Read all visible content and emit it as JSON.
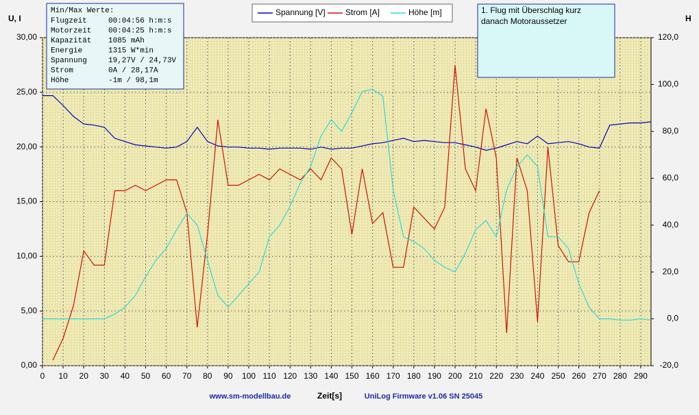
{
  "chart_data": {
    "type": "line",
    "y_label": "U, I",
    "y2_label": "H",
    "x_label": "Zeit[s]",
    "footer_left": "www.sm-modellbau.de",
    "footer_right": "UniLog Firmware v1.06 SN 25045",
    "annotation": [
      "1. Flug mit Überschlag kurz",
      "danach Motoraussetzer"
    ],
    "info_box": {
      "title": "Min/Max Werte:",
      "rows": [
        [
          "Flugzeit",
          "00:04:56 h:m:s"
        ],
        [
          "Motorzeit",
          "00:04:25 h:m:s"
        ],
        [
          "Kapazität",
          "1085 mAh"
        ],
        [
          "Energie",
          "1315 W*min"
        ],
        [
          "Spannung",
          "19,27V / 24,73V"
        ],
        [
          "Strom",
          "0A / 28,17A"
        ],
        [
          "Höhe",
          "-1m / 98,1m"
        ]
      ]
    },
    "grid": true,
    "xlim": [
      0,
      295
    ],
    "xticks": [
      0,
      10,
      20,
      30,
      40,
      50,
      60,
      70,
      80,
      90,
      100,
      110,
      120,
      130,
      140,
      150,
      160,
      170,
      180,
      190,
      200,
      210,
      220,
      230,
      240,
      250,
      260,
      270,
      280,
      290
    ],
    "ylim": [
      0,
      30
    ],
    "yticks": [
      {
        "value": 0,
        "label": "0,00"
      },
      {
        "value": 5,
        "label": "5,00"
      },
      {
        "value": 10,
        "label": "10,00"
      },
      {
        "value": 15,
        "label": "15,00"
      },
      {
        "value": 20,
        "label": "20,00"
      },
      {
        "value": 25,
        "label": "25,00"
      },
      {
        "value": 30,
        "label": "30,00"
      }
    ],
    "y2lim": [
      -20,
      120
    ],
    "y2ticks": [
      {
        "value": -20,
        "label": "-20,0"
      },
      {
        "value": 0,
        "label": "0,0"
      },
      {
        "value": 20,
        "label": "20,0"
      },
      {
        "value": 40,
        "label": "40,0"
      },
      {
        "value": 60,
        "label": "60,0"
      },
      {
        "value": 80,
        "label": "80,0"
      },
      {
        "value": 100,
        "label": "100,0"
      },
      {
        "value": 120,
        "label": "120,0"
      }
    ],
    "x": [
      0,
      5,
      10,
      15,
      20,
      25,
      30,
      35,
      40,
      45,
      50,
      55,
      60,
      65,
      70,
      75,
      80,
      85,
      90,
      95,
      100,
      105,
      110,
      115,
      120,
      125,
      130,
      135,
      140,
      145,
      150,
      155,
      160,
      165,
      170,
      175,
      180,
      185,
      190,
      195,
      200,
      205,
      210,
      215,
      220,
      225,
      230,
      235,
      240,
      245,
      250,
      255,
      260,
      265,
      270,
      275,
      280,
      285,
      290,
      295
    ],
    "series": [
      {
        "name": "Spannung [V]",
        "color": "#0000c0",
        "values": [
          24.7,
          24.7,
          23.8,
          22.8,
          22.1,
          22.0,
          21.8,
          20.8,
          20.5,
          20.2,
          20.1,
          20.0,
          19.9,
          20.0,
          20.5,
          21.8,
          20.5,
          20.1,
          20.0,
          20.0,
          19.9,
          19.9,
          19.8,
          19.9,
          19.9,
          19.9,
          19.8,
          20.0,
          19.8,
          19.9,
          19.9,
          20.1,
          20.3,
          20.4,
          20.6,
          20.8,
          20.5,
          20.6,
          20.5,
          20.4,
          20.4,
          20.2,
          20.0,
          19.7,
          19.9,
          20.2,
          20.5,
          20.3,
          21.0,
          20.3,
          20.4,
          20.5,
          20.3,
          20.0,
          19.9,
          22.0,
          22.1,
          22.2,
          22.2,
          22.3
        ]
      },
      {
        "name": "Strom [A]",
        "color": "#d01000",
        "values": [
          null,
          0.5,
          2.5,
          5.5,
          10.5,
          9.2,
          9.2,
          16.0,
          16.0,
          16.5,
          16.0,
          16.5,
          17.0,
          17.0,
          14.0,
          3.5,
          12.0,
          22.5,
          16.5,
          16.5,
          17.0,
          17.5,
          17.0,
          18.0,
          17.5,
          17.0,
          18.0,
          17.0,
          19.0,
          18.0,
          12.0,
          18.0,
          13.0,
          14.0,
          9.0,
          9.0,
          14.5,
          13.5,
          12.5,
          14.5,
          27.5,
          18.0,
          16.0,
          23.5,
          19.0,
          3.0,
          19.0,
          16.0,
          4.0,
          20.0,
          11.0,
          9.5,
          9.5,
          14.0,
          16.0,
          null,
          null,
          null,
          null,
          null
        ]
      },
      {
        "name": "Höhe [m]",
        "color": "#30d8d8",
        "axis": "y2",
        "values": [
          0,
          0,
          0,
          0,
          0,
          0,
          0,
          2,
          5,
          10,
          18,
          25,
          30,
          38,
          45,
          40,
          25,
          10,
          5,
          10,
          15,
          20,
          35,
          40,
          48,
          58,
          65,
          78,
          85,
          80,
          88,
          97,
          98,
          95,
          55,
          35,
          33,
          30,
          25,
          22,
          20,
          28,
          38,
          42,
          35,
          55,
          65,
          70,
          65,
          35,
          35,
          30,
          15,
          5,
          0,
          0,
          -0.5,
          -0.5,
          0,
          -0.5
        ]
      }
    ]
  }
}
